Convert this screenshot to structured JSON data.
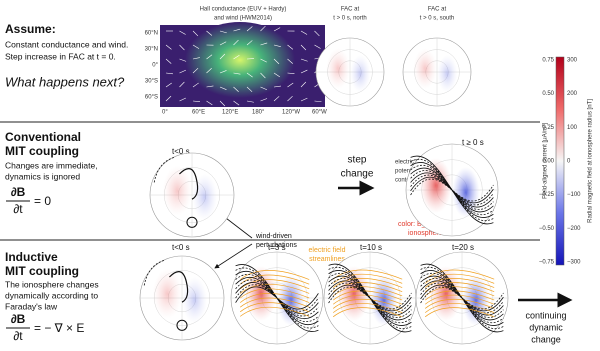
{
  "assume": {
    "title": "Assume:",
    "lines": [
      "Constant conductance and wind.",
      "Step increase in FAC at t = 0."
    ],
    "question": "What happens next?"
  },
  "map": {
    "title": [
      "Hall conductance (EUV + Hardy)",
      "and wind (HWM2014)"
    ],
    "lat_labels": [
      "60°N",
      "30°N",
      "0°",
      "30°S",
      "60°S"
    ],
    "lon_labels": [
      "0°",
      "60°E",
      "120°E",
      "180°",
      "120°W",
      "60°W"
    ]
  },
  "fac_north": {
    "title": [
      "FAC at",
      "t > 0 s, north"
    ]
  },
  "fac_south": {
    "title": [
      "FAC at",
      "t > 0 s, south"
    ]
  },
  "conventional": {
    "title": [
      "Conventional",
      "MIT coupling"
    ],
    "lines": [
      "Changes are immediate,",
      "dynamics is ignored"
    ],
    "equation": {
      "numerator": "∂B",
      "denominator": "∂t",
      "rhs": "= 0"
    },
    "before_label": "t<0 s",
    "step": [
      "step",
      "change"
    ],
    "after_label": "t ≥ 0 s",
    "contours": [
      "electric field",
      "potential",
      "contours"
    ],
    "color_note": [
      "color: B_r in",
      "ionosphere"
    ]
  },
  "wind_note": [
    "wind-driven",
    "perturbations"
  ],
  "inductive": {
    "title": [
      "Inductive",
      "MIT coupling"
    ],
    "lines": [
      "The ionosphere changes",
      "dynamically according to",
      "Faraday's law"
    ],
    "equation": {
      "numerator": "∂B",
      "denominator": "∂t",
      "rhs": "= − ∇ × E"
    },
    "panel_labels": [
      "t<0 s",
      "t=3 s",
      "t=10 s",
      "t=20 s"
    ],
    "streamlines": [
      "electric field",
      "streamlines"
    ],
    "continuing": [
      "continuing",
      "dynamic",
      "change"
    ]
  },
  "colorbar": {
    "left_label": "Field-aligned current [μA/m²]",
    "right_label": "Radial magnetic field at ionosphere radius [nT]",
    "left_ticks": [
      "0.75",
      "0.50",
      "0.25",
      "0.00",
      "−0.25",
      "−0.50",
      "−0.75"
    ],
    "right_ticks": [
      "300",
      "200",
      "100",
      "0",
      "−100",
      "−200",
      "−300"
    ]
  }
}
